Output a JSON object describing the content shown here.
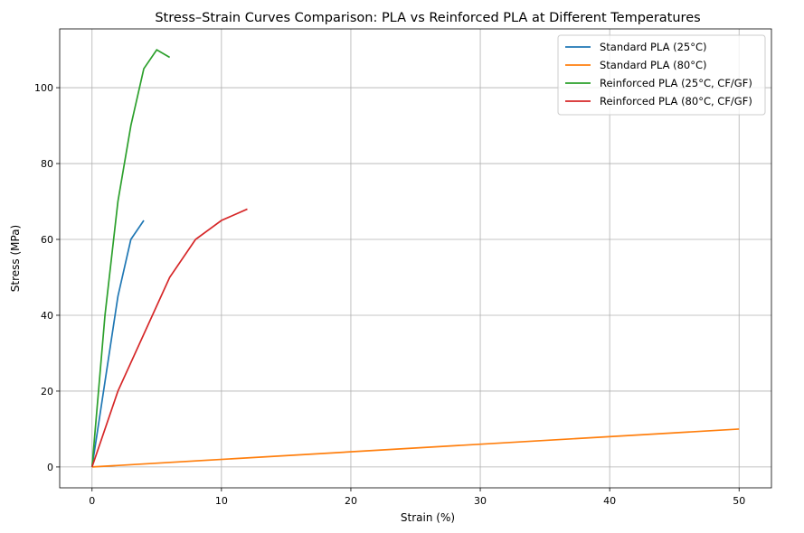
{
  "chart_data": {
    "type": "line",
    "title": "Stress–Strain Curves Comparison: PLA vs Reinforced PLA at Different Temperatures",
    "xlabel": "Strain (%)",
    "ylabel": "Stress (MPa)",
    "xlim": [
      -2.5,
      52.5
    ],
    "ylim": [
      -5.5,
      115.5
    ],
    "xticks": [
      0,
      10,
      20,
      30,
      40,
      50
    ],
    "yticks": [
      0,
      20,
      40,
      60,
      80,
      100
    ],
    "grid": true,
    "legend_position": "top-right",
    "series": [
      {
        "name": "Standard PLA (25°C)",
        "color": "#1f77b4",
        "x": [
          0,
          1,
          2,
          3,
          4
        ],
        "y": [
          0,
          22.5,
          45,
          60,
          65
        ]
      },
      {
        "name": "Standard PLA (80°C)",
        "color": "#ff7f0e",
        "x": [
          0,
          50
        ],
        "y": [
          0,
          10
        ]
      },
      {
        "name": "Reinforced PLA (25°C, CF/GF)",
        "color": "#2ca02c",
        "x": [
          0,
          1,
          2,
          3,
          4,
          5,
          6
        ],
        "y": [
          0,
          40,
          70,
          90,
          105,
          110,
          108
        ]
      },
      {
        "name": "Reinforced PLA (80°C, CF/GF)",
        "color": "#d62728",
        "x": [
          0,
          2,
          6,
          8,
          10,
          12
        ],
        "y": [
          0,
          20,
          50,
          60,
          65,
          68
        ]
      }
    ]
  }
}
